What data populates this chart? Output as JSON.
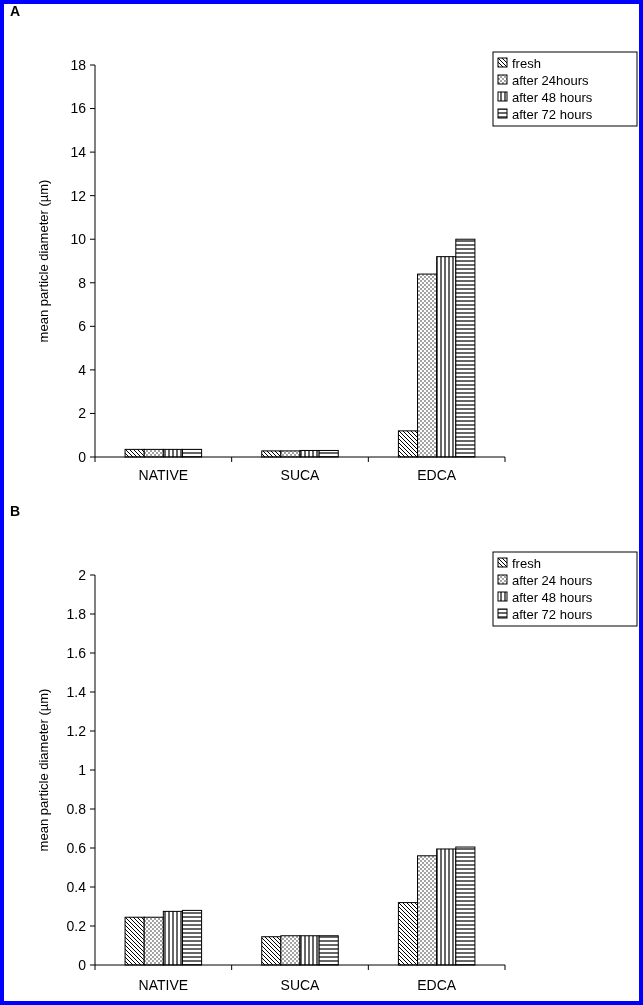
{
  "chart_data": [
    {
      "type": "bar",
      "title": "A",
      "ylabel": "mean particle diameter (µm)",
      "categories": [
        "NATIVE",
        "SUCA",
        "EDCA"
      ],
      "series": [
        {
          "name": "fresh",
          "color": "#000000",
          "values": [
            0.35,
            0.28,
            1.2
          ]
        },
        {
          "name": "after 24hours",
          "color": "#000000",
          "values": [
            0.35,
            0.28,
            8.4
          ]
        },
        {
          "name": "after 48 hours",
          "color": "#000000",
          "values": [
            0.35,
            0.3,
            9.2
          ]
        },
        {
          "name": "after 72 hours",
          "color": "#000000",
          "values": [
            0.35,
            0.3,
            10
          ]
        }
      ],
      "ylim": [
        0,
        18
      ],
      "yticks": [
        0,
        2,
        4,
        6,
        8,
        10,
        12,
        14,
        16,
        18
      ],
      "legend": "top right",
      "grid": false
    },
    {
      "type": "bar",
      "title": "B",
      "ylabel": "mean particle diameter (µm)",
      "categories": [
        "NATIVE",
        "SUCA",
        "EDCA"
      ],
      "series": [
        {
          "name": "fresh",
          "color": "#000000",
          "values": [
            0.245,
            0.145,
            0.32
          ]
        },
        {
          "name": "after 24 hours",
          "color": "#000000",
          "values": [
            0.245,
            0.15,
            0.56
          ]
        },
        {
          "name": "after 48 hours",
          "color": "#000000",
          "values": [
            0.275,
            0.15,
            0.595
          ]
        },
        {
          "name": "after 72 hours",
          "color": "#000000",
          "values": [
            0.28,
            0.15,
            0.605
          ]
        }
      ],
      "ylim": [
        0,
        2
      ],
      "yticks": [
        0,
        0.2,
        0.4,
        0.6,
        0.8,
        1,
        1.2,
        1.4,
        1.6,
        1.8,
        2
      ],
      "legend": "top right",
      "grid": false
    }
  ]
}
